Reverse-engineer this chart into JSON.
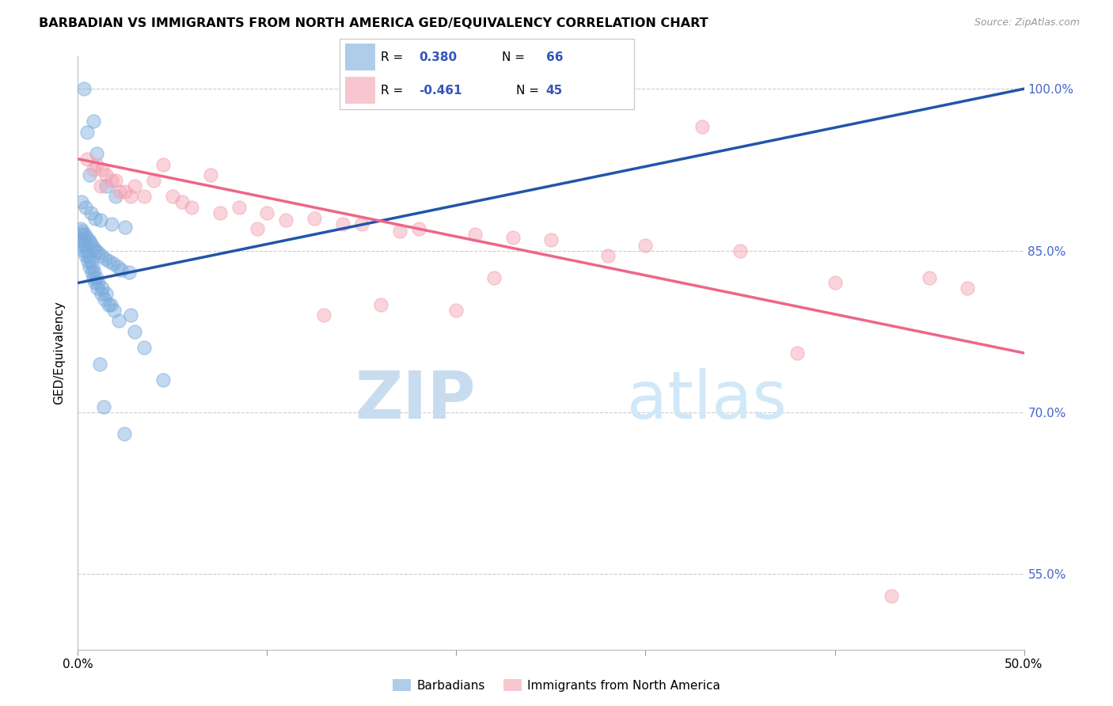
{
  "title": "BARBADIAN VS IMMIGRANTS FROM NORTH AMERICA GED/EQUIVALENCY CORRELATION CHART",
  "source": "Source: ZipAtlas.com",
  "ylabel": "GED/Equivalency",
  "xlim": [
    0.0,
    50.0
  ],
  "ylim": [
    48.0,
    103.0
  ],
  "yticks": [
    55.0,
    70.0,
    85.0,
    100.0
  ],
  "ytick_labels": [
    "55.0%",
    "70.0%",
    "85.0%",
    "100.0%"
  ],
  "xticks": [
    0.0,
    10.0,
    20.0,
    30.0,
    40.0,
    50.0
  ],
  "blue_r": "0.380",
  "blue_n": "66",
  "pink_r": "-0.461",
  "pink_n": "45",
  "blue_color": "#7AABDC",
  "pink_color": "#F4A0B0",
  "blue_line_color": "#2255AA",
  "pink_line_color": "#EE6688",
  "legend_label_blue": "Barbadians",
  "legend_label_pink": "Immigrants from North America",
  "blue_points_x": [
    0.3,
    0.8,
    0.5,
    1.0,
    0.6,
    1.5,
    2.0,
    0.2,
    0.4,
    0.7,
    0.9,
    1.2,
    1.8,
    2.5,
    0.15,
    0.25,
    0.35,
    0.45,
    0.55,
    0.65,
    0.75,
    0.85,
    0.95,
    1.05,
    1.25,
    1.45,
    1.65,
    1.85,
    2.1,
    2.3,
    2.7,
    0.12,
    0.22,
    0.32,
    0.42,
    0.52,
    0.62,
    0.72,
    0.82,
    0.92,
    1.02,
    1.22,
    1.42,
    1.62,
    1.9,
    2.8,
    0.18,
    0.28,
    0.38,
    0.48,
    0.58,
    0.68,
    0.78,
    0.88,
    0.98,
    1.08,
    1.3,
    1.5,
    1.75,
    2.15,
    3.0,
    3.5,
    1.15,
    4.5,
    1.35,
    2.45
  ],
  "blue_points_y": [
    100.0,
    97.0,
    96.0,
    94.0,
    92.0,
    91.0,
    90.0,
    89.5,
    89.0,
    88.5,
    88.0,
    87.8,
    87.5,
    87.2,
    87.0,
    86.8,
    86.5,
    86.2,
    86.0,
    85.8,
    85.5,
    85.2,
    85.0,
    84.8,
    84.5,
    84.2,
    84.0,
    83.8,
    83.5,
    83.2,
    83.0,
    86.0,
    85.5,
    85.0,
    84.5,
    84.0,
    83.5,
    83.0,
    82.5,
    82.0,
    81.5,
    81.0,
    80.5,
    80.0,
    79.5,
    79.0,
    86.5,
    86.0,
    85.5,
    85.0,
    84.5,
    84.0,
    83.5,
    83.0,
    82.5,
    82.0,
    81.5,
    81.0,
    80.0,
    78.5,
    77.5,
    76.0,
    74.5,
    73.0,
    70.5,
    68.0
  ],
  "pink_points_x": [
    0.5,
    1.0,
    0.8,
    1.5,
    2.0,
    1.2,
    2.5,
    3.5,
    1.8,
    4.5,
    5.5,
    7.0,
    8.5,
    10.0,
    12.5,
    15.0,
    18.0,
    21.0,
    3.0,
    6.0,
    9.5,
    4.0,
    2.8,
    14.0,
    25.0,
    30.0,
    35.0,
    40.0,
    45.0,
    47.0,
    2.2,
    1.3,
    11.0,
    17.0,
    23.0,
    28.0,
    22.0,
    7.5,
    5.0,
    13.0,
    20.0,
    33.0,
    16.0,
    38.0,
    43.0
  ],
  "pink_points_y": [
    93.5,
    93.0,
    92.5,
    92.0,
    91.5,
    91.0,
    90.5,
    90.0,
    91.5,
    93.0,
    89.5,
    92.0,
    89.0,
    88.5,
    88.0,
    87.5,
    87.0,
    86.5,
    91.0,
    89.0,
    87.0,
    91.5,
    90.0,
    87.5,
    86.0,
    85.5,
    85.0,
    82.0,
    82.5,
    81.5,
    90.5,
    92.5,
    87.8,
    86.8,
    86.2,
    84.5,
    82.5,
    88.5,
    90.0,
    79.0,
    79.5,
    96.5,
    80.0,
    75.5,
    53.0
  ],
  "blue_trend_x": [
    0.0,
    50.0
  ],
  "blue_trend_y": [
    82.0,
    100.0
  ],
  "pink_trend_x": [
    0.0,
    50.0
  ],
  "pink_trend_y": [
    93.5,
    75.5
  ]
}
